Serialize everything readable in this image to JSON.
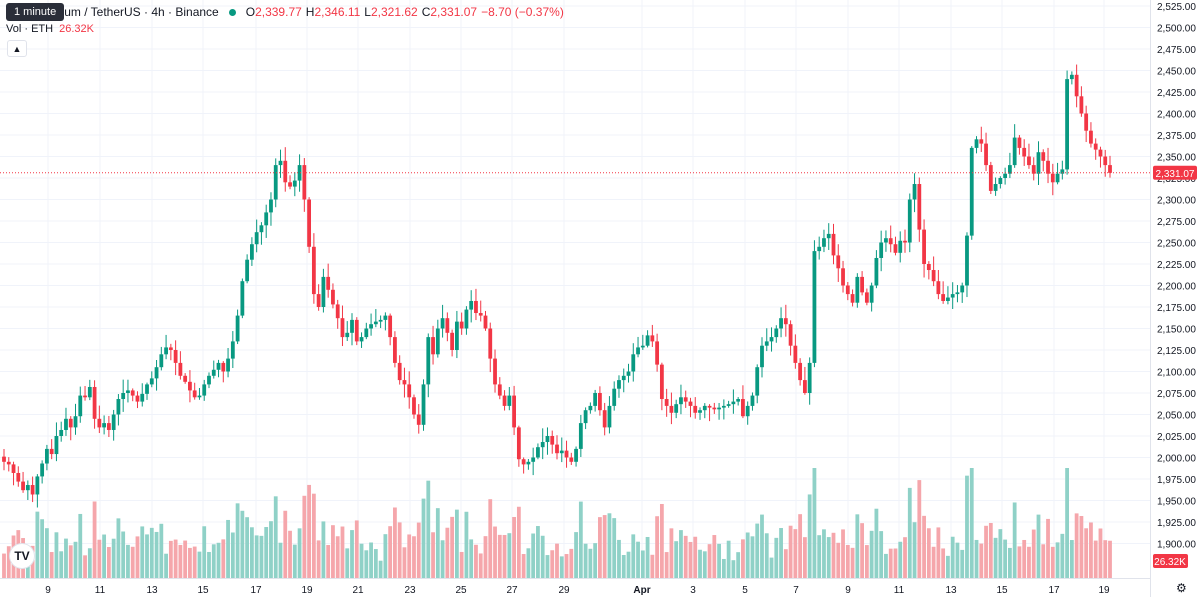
{
  "header": {
    "tooltip": "1 minute",
    "symbol": "um / TetherUS · 4h · Binance",
    "ohlc": [
      {
        "k": "O",
        "v": "2,339.77"
      },
      {
        "k": "H",
        "v": "2,346.11"
      },
      {
        "k": "L",
        "v": "2,321.62"
      },
      {
        "k": "C",
        "v": "2,331.07"
      },
      {
        "k": "",
        "v": "−8.70 (−0.37%)"
      }
    ],
    "vol_label": "Vol · ETH",
    "vol_value": "26.32K",
    "collapse_icon": "chevron-up-icon",
    "logo_icon": "tradingview-logo",
    "settings_icon": "gear-icon"
  },
  "colors": {
    "up": "#089981",
    "down": "#f23645",
    "vol_up": "#8fd1c7",
    "vol_down": "#f5a6ab",
    "grid": "#f0f3fa",
    "axis_text": "#131722"
  },
  "chart_data": {
    "type": "candlestick",
    "ylim": [
      1862,
      2535
    ],
    "y_ticks": [
      "1,900.00",
      "1,925.00",
      "1,950.00",
      "1,975.00",
      "2,000.00",
      "2,025.00",
      "2,050.00",
      "2,075.00",
      "2,100.00",
      "2,125.00",
      "2,150.00",
      "2,175.00",
      "2,200.00",
      "2,225.00",
      "2,250.00",
      "2,275.00",
      "2,300.00",
      "2,325.00",
      "2,350.00",
      "2,375.00",
      "2,400.00",
      "2,425.00",
      "2,450.00",
      "2,475.00",
      "2,500.00",
      "2,525.00"
    ],
    "x_ticks": [
      "9",
      "11",
      "13",
      "15",
      "17",
      "19",
      "21",
      "23",
      "25",
      "27",
      "29",
      "Apr",
      "3",
      "5",
      "7",
      "9",
      "11",
      "13",
      "15",
      "17",
      "19"
    ],
    "last_price_label": "2,331.07",
    "last_price": 2331.07,
    "volume_label": "26.32K",
    "grid": true,
    "closes": [
      1995,
      1992,
      1982,
      1972,
      1962,
      1968,
      1957,
      1978,
      1993,
      2010,
      2004,
      2025,
      2032,
      2045,
      2035,
      2048,
      2072,
      2070,
      2082,
      2045,
      2035,
      2040,
      2032,
      2050,
      2068,
      2075,
      2078,
      2072,
      2065,
      2074,
      2085,
      2092,
      2105,
      2120,
      2128,
      2125,
      2110,
      2095,
      2088,
      2078,
      2070,
      2072,
      2085,
      2095,
      2102,
      2110,
      2100,
      2115,
      2135,
      2165,
      2205,
      2230,
      2248,
      2262,
      2270,
      2285,
      2300,
      2340,
      2345,
      2320,
      2315,
      2322,
      2340,
      2300,
      2245,
      2190,
      2175,
      2210,
      2195,
      2178,
      2162,
      2140,
      2145,
      2160,
      2135,
      2140,
      2150,
      2155,
      2158,
      2160,
      2165,
      2140,
      2110,
      2090,
      2085,
      2070,
      2050,
      2038,
      2085,
      2140,
      2120,
      2150,
      2162,
      2145,
      2125,
      2158,
      2150,
      2172,
      2182,
      2168,
      2165,
      2150,
      2115,
      2085,
      2072,
      2060,
      2072,
      2035,
      1998,
      1992,
      1995,
      2000,
      2012,
      2018,
      2025,
      2015,
      2005,
      2008,
      2000,
      1995,
      2010,
      2040,
      2055,
      2060,
      2075,
      2055,
      2035,
      2060,
      2080,
      2090,
      2095,
      2100,
      2120,
      2128,
      2130,
      2142,
      2135,
      2108,
      2068,
      2060,
      2052,
      2062,
      2070,
      2065,
      2060,
      2052,
      2055,
      2060,
      2058,
      2056,
      2058,
      2060,
      2062,
      2065,
      2068,
      2048,
      2060,
      2072,
      2105,
      2130,
      2135,
      2140,
      2150,
      2162,
      2155,
      2130,
      2110,
      2090,
      2075,
      2110,
      2240,
      2245,
      2255,
      2260,
      2235,
      2220,
      2200,
      2190,
      2180,
      2210,
      2192,
      2180,
      2200,
      2232,
      2250,
      2255,
      2248,
      2238,
      2252,
      2250,
      2300,
      2318,
      2265,
      2225,
      2218,
      2205,
      2190,
      2182,
      2186,
      2190,
      2192,
      2200,
      2258,
      2360,
      2370,
      2365,
      2340,
      2310,
      2318,
      2325,
      2330,
      2340,
      2372,
      2360,
      2350,
      2340,
      2330,
      2355,
      2345,
      2330,
      2320,
      2330,
      2335,
      2440,
      2445,
      2420,
      2400,
      2380,
      2365,
      2358,
      2350,
      2340,
      2331
    ],
    "x_data_range": [
      "Mar 8",
      "Apr 19"
    ],
    "series": [
      {
        "values": "closes"
      }
    ]
  }
}
